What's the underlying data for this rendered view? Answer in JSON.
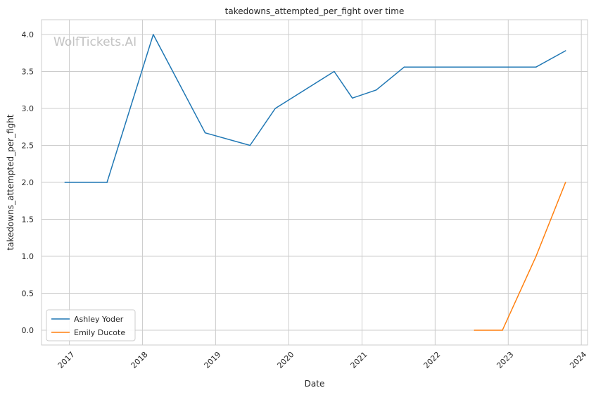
{
  "watermark": "WolfTickets.AI",
  "chart_data": {
    "type": "line",
    "title": "takedowns_attempted_per_fight over time",
    "xlabel": "Date",
    "ylabel": "takedowns_attempted_per_fight",
    "x_ticks": [
      "2017",
      "2018",
      "2019",
      "2020",
      "2021",
      "2022",
      "2023",
      "2024"
    ],
    "y_ticks": [
      "0.0",
      "0.5",
      "1.0",
      "1.5",
      "2.0",
      "2.5",
      "3.0",
      "3.5",
      "4.0"
    ],
    "xlim": [
      "2016-08-15",
      "2024-02-01"
    ],
    "ylim": [
      -0.2,
      4.2
    ],
    "grid": true,
    "legend_position": "lower-left",
    "series": [
      {
        "name": "Ashley Yoder",
        "color": "#1f77b4",
        "points": [
          {
            "x": "2016-12-10",
            "y": 2.0
          },
          {
            "x": "2017-07-08",
            "y": 2.0
          },
          {
            "x": "2018-02-24",
            "y": 4.0
          },
          {
            "x": "2018-11-10",
            "y": 2.67
          },
          {
            "x": "2019-06-22",
            "y": 2.5
          },
          {
            "x": "2019-10-26",
            "y": 3.0
          },
          {
            "x": "2020-08-15",
            "y": 3.5
          },
          {
            "x": "2020-11-14",
            "y": 3.14
          },
          {
            "x": "2021-03-13",
            "y": 3.25
          },
          {
            "x": "2021-07-31",
            "y": 3.56
          },
          {
            "x": "2023-05-20",
            "y": 3.56
          },
          {
            "x": "2023-10-14",
            "y": 3.78
          }
        ]
      },
      {
        "name": "Emily Ducote",
        "color": "#ff7f0e",
        "points": [
          {
            "x": "2022-07-16",
            "y": 0.0
          },
          {
            "x": "2022-12-03",
            "y": 0.0
          },
          {
            "x": "2023-05-20",
            "y": 1.0
          },
          {
            "x": "2023-10-14",
            "y": 2.0
          }
        ]
      }
    ]
  }
}
